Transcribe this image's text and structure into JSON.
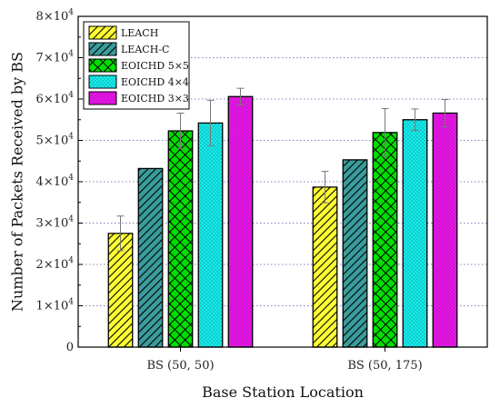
{
  "chart_data": {
    "type": "bar",
    "xlabel": "Base Station Location",
    "ylabel": "Number of Packets Received by BS",
    "ylim": [
      0,
      80000
    ],
    "y_ticks": [
      {
        "value": 0,
        "base": "0",
        "exp": ""
      },
      {
        "value": 10000,
        "base": "1×10",
        "exp": "4"
      },
      {
        "value": 20000,
        "base": "2×10",
        "exp": "4"
      },
      {
        "value": 30000,
        "base": "3×10",
        "exp": "4"
      },
      {
        "value": 40000,
        "base": "4×10",
        "exp": "4"
      },
      {
        "value": 50000,
        "base": "5×10",
        "exp": "4"
      },
      {
        "value": 60000,
        "base": "6×10",
        "exp": "4"
      },
      {
        "value": 70000,
        "base": "7×10",
        "exp": "4"
      },
      {
        "value": 80000,
        "base": "8×10",
        "exp": "4"
      }
    ],
    "grid": "horizontal-dotted",
    "legend_position": "top-left",
    "categories": [
      "BS (50, 50)",
      "BS (50, 175)"
    ],
    "series": [
      {
        "name": "LEACH",
        "values": [
          27500,
          38700
        ],
        "errors": [
          4200,
          3800
        ],
        "color": "#ffff33",
        "pattern": "diag"
      },
      {
        "name": "LEACH-C",
        "values": [
          43200,
          45300
        ],
        "errors": [
          null,
          null
        ],
        "color": "#3a9c9c",
        "pattern": "diag"
      },
      {
        "name": "EOICHD 5×5",
        "values": [
          52300,
          51900
        ],
        "errors": [
          4300,
          5800
        ],
        "color": "#00dd00",
        "pattern": "cross"
      },
      {
        "name": "EOICHD 4×4",
        "values": [
          54200,
          55000
        ],
        "errors": [
          5500,
          2600
        ],
        "color": "#11eeee",
        "pattern": "dots"
      },
      {
        "name": "EOICHD 3×3",
        "values": [
          60600,
          56600
        ],
        "errors": [
          2000,
          3300
        ],
        "color": "#ee11ee",
        "pattern": "dots"
      }
    ]
  }
}
